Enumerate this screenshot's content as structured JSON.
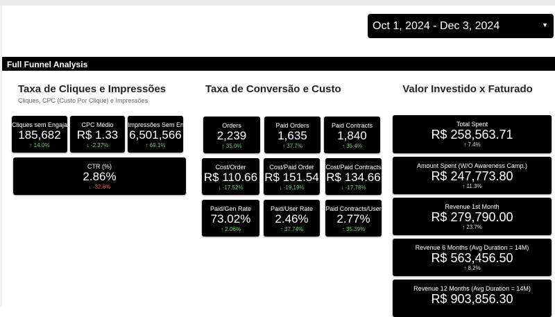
{
  "date_range": {
    "value": "Oct 1, 2024 - Dec 3, 2024"
  },
  "header": {
    "title": "Full Funnel Analysis"
  },
  "sections": {
    "clicks": {
      "title": "Taxa de Cliques e Impressões",
      "subtitle": "Cliques, CPC (Custo Por Clique) e Impressões",
      "cards": [
        {
          "label": "Cliques sem Engajamento",
          "value": "185,682",
          "delta": "↑ 14.0%"
        },
        {
          "label": "CPC Médio",
          "value": "R$ 1.33",
          "delta": "↓ -2.37%"
        },
        {
          "label": "Impressões Sem Engajamento",
          "value": "6,501,566",
          "delta": "↑ 69.1%"
        },
        {
          "label": "CTR (%)",
          "value": "2.86%",
          "delta": "↓ -32.6%"
        }
      ]
    },
    "conversion": {
      "title": "Taxa de Conversão e Custo",
      "cards": [
        {
          "label": "Orders",
          "value": "2,239",
          "delta": "↑ 35.0%"
        },
        {
          "label": "Paid Orders",
          "value": "1,635",
          "delta": "↑ 37.7%"
        },
        {
          "label": "Paid Contracts",
          "value": "1,840",
          "delta": "↑ 35.4%"
        },
        {
          "label": "Cost/Order",
          "value": "R$ 110.66",
          "delta": "↓ -17.52%"
        },
        {
          "label": "Cost/Paid Order",
          "value": "R$ 151.54",
          "delta": "↓ -19.19%"
        },
        {
          "label": "Cost/Paid Contracts",
          "value": "R$ 134.66",
          "delta": "↓ -17.78%"
        },
        {
          "label": "Paid/Gen Rate",
          "value": "73.02%",
          "delta": "↑ 2.06%"
        },
        {
          "label": "Paid/User Rate",
          "value": "2.46%",
          "delta": "↑ 37.74%"
        },
        {
          "label": "Paid Contracts/User",
          "value": "2.77%",
          "delta": "↑ 35.39%"
        }
      ]
    },
    "invested": {
      "title": "Valor Investido x Faturado",
      "cards": [
        {
          "label": "Total Spent",
          "value": "R$ 258,563.71",
          "delta": "↑ 7.4%"
        },
        {
          "label": "Amount Spent (W/O Awareness Camp.)",
          "value": "R$ 247,773.80",
          "delta": "↑ 11.3%"
        },
        {
          "label": "Revenue 1st Month",
          "value": "R$ 279,790.00",
          "delta": "↑ 23.7%"
        },
        {
          "label": "Revenue 6 Months (Avg Duration = 14M)",
          "value": "R$ 563,456.50",
          "delta": "↑ 8.2%"
        },
        {
          "label": "Revenue 12 Months (Avg Duration = 14M)",
          "value": "R$ 903,856.30"
        }
      ]
    }
  },
  "colors": {
    "positive": "#6fcf6f",
    "negative": "#e05555",
    "card_bg": "#000000"
  }
}
